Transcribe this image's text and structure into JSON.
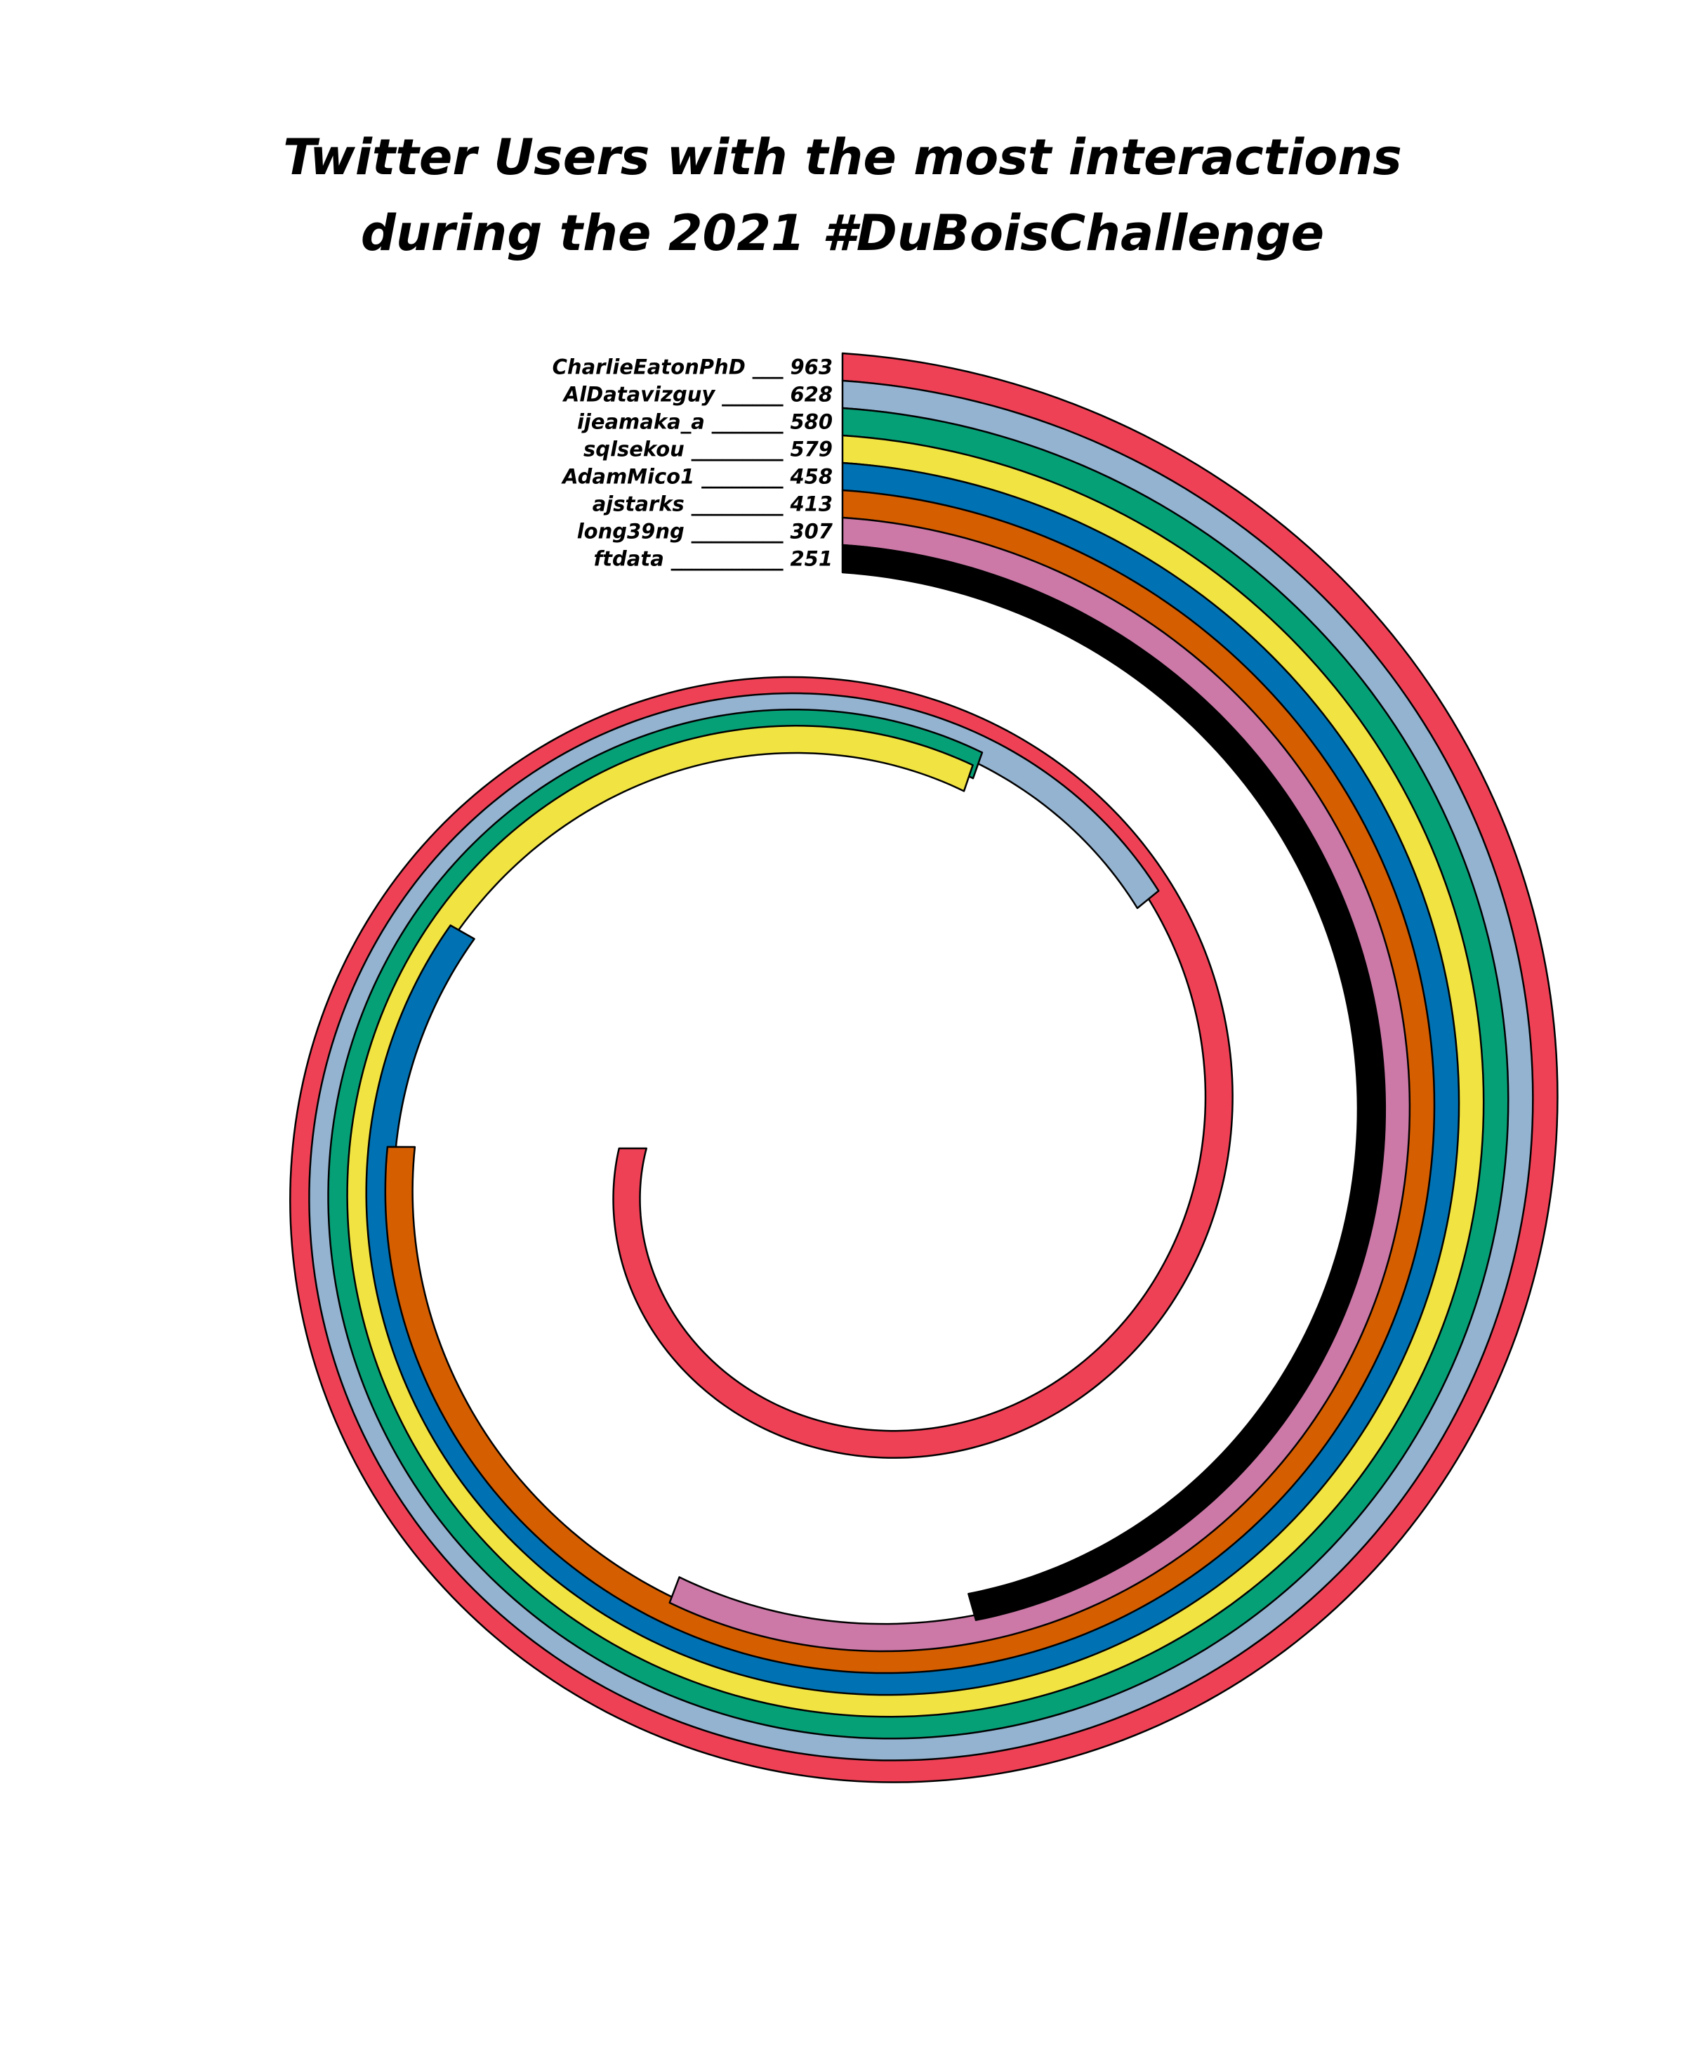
{
  "chart_data": {
    "type": "bar",
    "title_lines": [
      "Twitter Users with the most interactions",
      "during the 2021 #DuBoisChallenge"
    ],
    "categories": [
      "CharlieEatonPhD",
      "AlDatavizguy",
      "ijeamaka_a",
      "sqlsekou",
      "AdamMico1",
      "ajstarks",
      "long39ng",
      "ftdata"
    ],
    "values": [
      963,
      628,
      580,
      579,
      458,
      413,
      307,
      251
    ],
    "leaders": [
      "___",
      "______",
      "_______",
      "_________",
      "________",
      "_________",
      "_________",
      "___________"
    ],
    "colors": [
      "#EF4155",
      "#94B3D0",
      "#06A077",
      "#F1E442",
      "#0071B2",
      "#D55E01",
      "#CC79A7",
      "#000000"
    ]
  }
}
